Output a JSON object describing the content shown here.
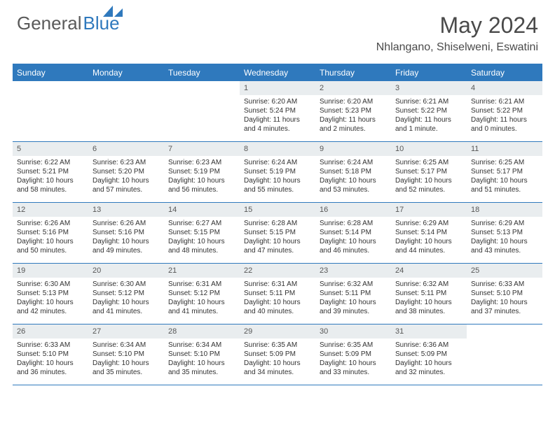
{
  "brand": {
    "general": "General",
    "blue": "Blue"
  },
  "title": {
    "month": "May 2024",
    "location": "Nhlangano, Shiselweni, Eswatini"
  },
  "colors": {
    "accent": "#2f79bd",
    "header_bg": "#2f79bd",
    "num_bg": "#e9edef",
    "text": "#323232"
  },
  "daynames": [
    "Sunday",
    "Monday",
    "Tuesday",
    "Wednesday",
    "Thursday",
    "Friday",
    "Saturday"
  ],
  "calendar": {
    "type": "table",
    "columns_per_row": 7,
    "weeks": [
      [
        {
          "n": "",
          "sr": "",
          "ss": "",
          "dl": ""
        },
        {
          "n": "",
          "sr": "",
          "ss": "",
          "dl": ""
        },
        {
          "n": "",
          "sr": "",
          "ss": "",
          "dl": ""
        },
        {
          "n": "1",
          "sr": "Sunrise: 6:20 AM",
          "ss": "Sunset: 5:24 PM",
          "dl": "Daylight: 11 hours and 4 minutes."
        },
        {
          "n": "2",
          "sr": "Sunrise: 6:20 AM",
          "ss": "Sunset: 5:23 PM",
          "dl": "Daylight: 11 hours and 2 minutes."
        },
        {
          "n": "3",
          "sr": "Sunrise: 6:21 AM",
          "ss": "Sunset: 5:22 PM",
          "dl": "Daylight: 11 hours and 1 minute."
        },
        {
          "n": "4",
          "sr": "Sunrise: 6:21 AM",
          "ss": "Sunset: 5:22 PM",
          "dl": "Daylight: 11 hours and 0 minutes."
        }
      ],
      [
        {
          "n": "5",
          "sr": "Sunrise: 6:22 AM",
          "ss": "Sunset: 5:21 PM",
          "dl": "Daylight: 10 hours and 58 minutes."
        },
        {
          "n": "6",
          "sr": "Sunrise: 6:23 AM",
          "ss": "Sunset: 5:20 PM",
          "dl": "Daylight: 10 hours and 57 minutes."
        },
        {
          "n": "7",
          "sr": "Sunrise: 6:23 AM",
          "ss": "Sunset: 5:19 PM",
          "dl": "Daylight: 10 hours and 56 minutes."
        },
        {
          "n": "8",
          "sr": "Sunrise: 6:24 AM",
          "ss": "Sunset: 5:19 PM",
          "dl": "Daylight: 10 hours and 55 minutes."
        },
        {
          "n": "9",
          "sr": "Sunrise: 6:24 AM",
          "ss": "Sunset: 5:18 PM",
          "dl": "Daylight: 10 hours and 53 minutes."
        },
        {
          "n": "10",
          "sr": "Sunrise: 6:25 AM",
          "ss": "Sunset: 5:17 PM",
          "dl": "Daylight: 10 hours and 52 minutes."
        },
        {
          "n": "11",
          "sr": "Sunrise: 6:25 AM",
          "ss": "Sunset: 5:17 PM",
          "dl": "Daylight: 10 hours and 51 minutes."
        }
      ],
      [
        {
          "n": "12",
          "sr": "Sunrise: 6:26 AM",
          "ss": "Sunset: 5:16 PM",
          "dl": "Daylight: 10 hours and 50 minutes."
        },
        {
          "n": "13",
          "sr": "Sunrise: 6:26 AM",
          "ss": "Sunset: 5:16 PM",
          "dl": "Daylight: 10 hours and 49 minutes."
        },
        {
          "n": "14",
          "sr": "Sunrise: 6:27 AM",
          "ss": "Sunset: 5:15 PM",
          "dl": "Daylight: 10 hours and 48 minutes."
        },
        {
          "n": "15",
          "sr": "Sunrise: 6:28 AM",
          "ss": "Sunset: 5:15 PM",
          "dl": "Daylight: 10 hours and 47 minutes."
        },
        {
          "n": "16",
          "sr": "Sunrise: 6:28 AM",
          "ss": "Sunset: 5:14 PM",
          "dl": "Daylight: 10 hours and 46 minutes."
        },
        {
          "n": "17",
          "sr": "Sunrise: 6:29 AM",
          "ss": "Sunset: 5:14 PM",
          "dl": "Daylight: 10 hours and 44 minutes."
        },
        {
          "n": "18",
          "sr": "Sunrise: 6:29 AM",
          "ss": "Sunset: 5:13 PM",
          "dl": "Daylight: 10 hours and 43 minutes."
        }
      ],
      [
        {
          "n": "19",
          "sr": "Sunrise: 6:30 AM",
          "ss": "Sunset: 5:13 PM",
          "dl": "Daylight: 10 hours and 42 minutes."
        },
        {
          "n": "20",
          "sr": "Sunrise: 6:30 AM",
          "ss": "Sunset: 5:12 PM",
          "dl": "Daylight: 10 hours and 41 minutes."
        },
        {
          "n": "21",
          "sr": "Sunrise: 6:31 AM",
          "ss": "Sunset: 5:12 PM",
          "dl": "Daylight: 10 hours and 41 minutes."
        },
        {
          "n": "22",
          "sr": "Sunrise: 6:31 AM",
          "ss": "Sunset: 5:11 PM",
          "dl": "Daylight: 10 hours and 40 minutes."
        },
        {
          "n": "23",
          "sr": "Sunrise: 6:32 AM",
          "ss": "Sunset: 5:11 PM",
          "dl": "Daylight: 10 hours and 39 minutes."
        },
        {
          "n": "24",
          "sr": "Sunrise: 6:32 AM",
          "ss": "Sunset: 5:11 PM",
          "dl": "Daylight: 10 hours and 38 minutes."
        },
        {
          "n": "25",
          "sr": "Sunrise: 6:33 AM",
          "ss": "Sunset: 5:10 PM",
          "dl": "Daylight: 10 hours and 37 minutes."
        }
      ],
      [
        {
          "n": "26",
          "sr": "Sunrise: 6:33 AM",
          "ss": "Sunset: 5:10 PM",
          "dl": "Daylight: 10 hours and 36 minutes."
        },
        {
          "n": "27",
          "sr": "Sunrise: 6:34 AM",
          "ss": "Sunset: 5:10 PM",
          "dl": "Daylight: 10 hours and 35 minutes."
        },
        {
          "n": "28",
          "sr": "Sunrise: 6:34 AM",
          "ss": "Sunset: 5:10 PM",
          "dl": "Daylight: 10 hours and 35 minutes."
        },
        {
          "n": "29",
          "sr": "Sunrise: 6:35 AM",
          "ss": "Sunset: 5:09 PM",
          "dl": "Daylight: 10 hours and 34 minutes."
        },
        {
          "n": "30",
          "sr": "Sunrise: 6:35 AM",
          "ss": "Sunset: 5:09 PM",
          "dl": "Daylight: 10 hours and 33 minutes."
        },
        {
          "n": "31",
          "sr": "Sunrise: 6:36 AM",
          "ss": "Sunset: 5:09 PM",
          "dl": "Daylight: 10 hours and 32 minutes."
        },
        {
          "n": "",
          "sr": "",
          "ss": "",
          "dl": ""
        }
      ]
    ]
  }
}
